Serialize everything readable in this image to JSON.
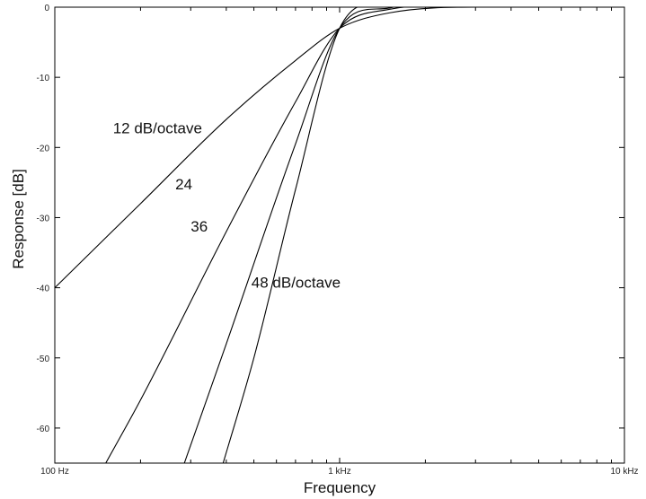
{
  "chart_data": {
    "type": "line",
    "xlabel": "Frequency",
    "ylabel": "Response [dB]",
    "xscale": "log",
    "xlim": [
      100,
      10000
    ],
    "ylim": [
      -65,
      0
    ],
    "grid": false,
    "x_ticks": [
      {
        "value": 100,
        "label": "100 Hz"
      },
      {
        "value": 1000,
        "label": "1 kHz"
      },
      {
        "value": 10000,
        "label": "10 kHz"
      }
    ],
    "y_ticks": [
      {
        "value": 0,
        "label": "0"
      },
      {
        "value": -10,
        "label": "-10"
      },
      {
        "value": -20,
        "label": "-20"
      },
      {
        "value": -30,
        "label": "-30"
      },
      {
        "value": -40,
        "label": "-40"
      },
      {
        "value": -50,
        "label": "-50"
      },
      {
        "value": -60,
        "label": "-60"
      }
    ],
    "series": [
      {
        "order": 2,
        "x": [
          100,
          200,
          400,
          700,
          1000,
          1500,
          3000,
          10000
        ],
        "y": [
          -40,
          -28,
          -16,
          -7.6,
          -3.0,
          -0.8,
          0,
          0
        ]
      },
      {
        "order": 4,
        "x": [
          151,
          200,
          400,
          700,
          1000,
          1500,
          3000,
          10000
        ],
        "y": [
          -65,
          -56,
          -32,
          -13.5,
          -3.0,
          -0.3,
          0,
          0
        ]
      },
      {
        "order": 6,
        "x": [
          285,
          400,
          700,
          1000,
          1500,
          3000,
          10000
        ],
        "y": [
          -65,
          -48,
          -19.5,
          -3.0,
          -0.1,
          0,
          0
        ]
      },
      {
        "order": 8,
        "x": [
          390,
          500,
          700,
          1000,
          1500,
          3000,
          10000
        ],
        "y": [
          -65,
          -50,
          -26,
          -3.0,
          0,
          0,
          0
        ]
      }
    ],
    "annotations": [
      {
        "text": "12 dB/octave",
        "x": 160,
        "y": -18
      },
      {
        "text": "24",
        "x": 265,
        "y": -26
      },
      {
        "text": "36",
        "x": 300,
        "y": -32
      },
      {
        "text": "48 dB/octave",
        "x": 490,
        "y": -40
      }
    ]
  }
}
